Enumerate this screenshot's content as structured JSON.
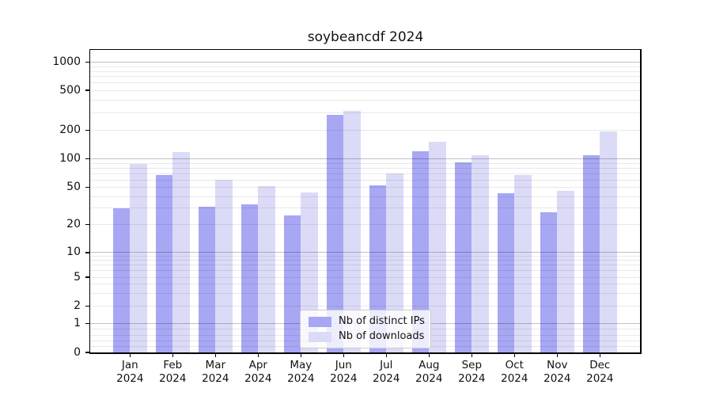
{
  "title": "soybeancdf 2024",
  "chart_data": {
    "type": "bar",
    "title": "soybeancdf 2024",
    "categories": [
      "Jan",
      "Feb",
      "Mar",
      "Apr",
      "May",
      "Jun",
      "Jul",
      "Aug",
      "Sep",
      "Oct",
      "Nov",
      "Dec"
    ],
    "category_year": "2024",
    "series": [
      {
        "name": "Nb of distinct IPs",
        "color": "#a7a7f4",
        "values": [
          30,
          67,
          31,
          33,
          25,
          285,
          53,
          120,
          92,
          43,
          27,
          110
        ]
      },
      {
        "name": "Nb of downloads",
        "color": "#dbdbf8",
        "values": [
          88,
          118,
          60,
          52,
          44,
          310,
          70,
          150,
          110,
          68,
          46,
          195
        ]
      }
    ],
    "yscale": "symlog",
    "yticks": [
      0,
      1,
      2,
      5,
      10,
      20,
      50,
      100,
      200,
      500,
      1000
    ],
    "ylim": [
      0,
      1360
    ],
    "xlabel": "",
    "ylabel": "",
    "grid": {
      "horizontal": true,
      "minor": true,
      "vertical": false
    },
    "legend_position": "lower center"
  }
}
